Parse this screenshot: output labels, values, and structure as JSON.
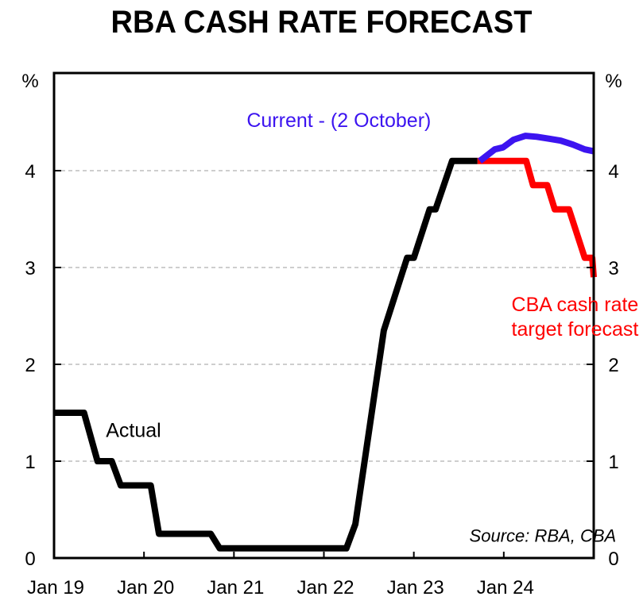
{
  "chart_data": {
    "type": "line",
    "title": "RBA CASH RATE FORECAST",
    "xlabel": "",
    "ylabel_left": "%",
    "ylabel_right": "%",
    "x_units": "months since Jan 2019",
    "xlim": [
      0,
      72
    ],
    "ylim": [
      0,
      4.75
    ],
    "y_ticks": [
      0,
      1,
      2,
      3,
      4
    ],
    "x_ticks": [
      {
        "value": 0,
        "label": "Jan 19"
      },
      {
        "value": 12,
        "label": "Jan 20"
      },
      {
        "value": 24,
        "label": "Jan 21"
      },
      {
        "value": 36,
        "label": "Jan 22"
      },
      {
        "value": 48,
        "label": "Jan 23"
      },
      {
        "value": 60,
        "label": "Jan 24"
      }
    ],
    "grid": {
      "horizontal": true,
      "style": "dashed"
    },
    "series": [
      {
        "name": "Actual",
        "color": "#000000",
        "x": [
          0,
          4,
          5.8,
          7.7,
          8.9,
          12.9,
          14,
          20.9,
          22.1,
          39,
          40.2,
          44,
          47.1,
          48,
          50.1,
          50.9,
          53.1,
          56.5
        ],
        "y": [
          1.5,
          1.5,
          1.0,
          1.0,
          0.75,
          0.75,
          0.25,
          0.25,
          0.1,
          0.1,
          0.35,
          2.35,
          3.1,
          3.1,
          3.6,
          3.6,
          4.1,
          4.1
        ]
      },
      {
        "name": "CBA cash rate target forecast",
        "color": "#ff0000",
        "x": [
          56.5,
          63,
          63.9,
          65.8,
          66.8,
          68.7,
          70.8,
          71.8,
          72
        ],
        "y": [
          4.1,
          4.1,
          3.85,
          3.85,
          3.6,
          3.6,
          3.1,
          3.1,
          2.9
        ]
      },
      {
        "name": "Current - (2 October)",
        "color": "#3c14f0",
        "x": [
          56.8,
          58.8,
          59.9,
          61.3,
          62.9,
          64.4,
          66,
          67.6,
          69.2,
          70.8,
          72
        ],
        "y": [
          4.1,
          4.22,
          4.24,
          4.32,
          4.36,
          4.35,
          4.33,
          4.31,
          4.27,
          4.22,
          4.2
        ]
      }
    ],
    "annotations": [
      {
        "text": "Current - (2 October)",
        "color": "#3c14f0",
        "x": 38,
        "y": 4.45
      },
      {
        "text": "Actual",
        "color": "#000000",
        "x": 10.6,
        "y": 1.25
      },
      {
        "text": [
          "CBA cash rate",
          "target forecast"
        ],
        "color": "#ff0000",
        "x": 69.5,
        "y": 2.55
      },
      {
        "text": "Source: RBA, CBA",
        "color": "#000000",
        "x": 65.2,
        "y": 0.17
      }
    ]
  }
}
